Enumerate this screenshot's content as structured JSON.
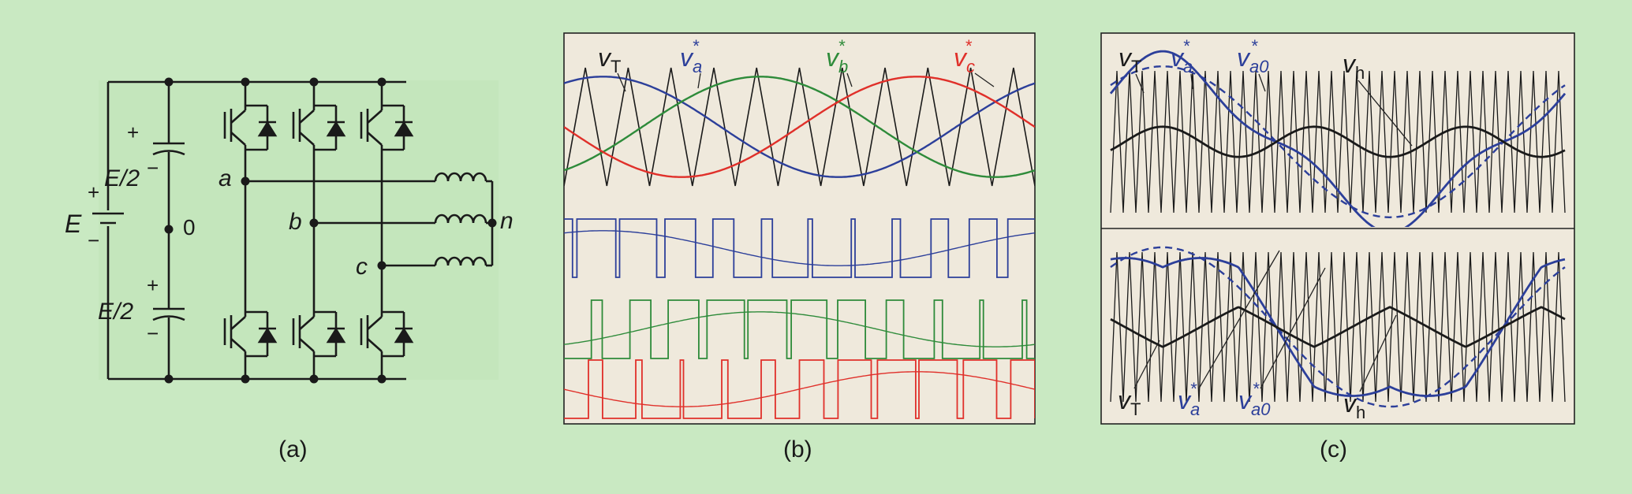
{
  "figure": {
    "background": "#c9e9c2",
    "panel_background": "#efe9dc",
    "colors": {
      "ink": "#1a1a1a",
      "phase_a": "#2c3f9a",
      "phase_b": "#2e8b3a",
      "phase_c": "#e0302a"
    }
  },
  "panel_a": {
    "caption": "(a)",
    "labels": {
      "plus": "+",
      "minus": "−",
      "E": "E",
      "E_half": "E/2",
      "zero": "0",
      "node_a": "a",
      "node_b": "b",
      "node_c": "c",
      "node_n": "n"
    }
  },
  "panel_b": {
    "caption": "(b)",
    "labels": {
      "v": "v",
      "sub_T": "T",
      "sub_a": "a",
      "sub_b": "b",
      "sub_c": "c",
      "star": "*"
    }
  },
  "panel_c": {
    "caption": "(c)",
    "labels": {
      "v": "v",
      "sub_T": "T",
      "sub_a": "a",
      "sub_a0": "a0",
      "sub_h": "h",
      "star": "*"
    }
  }
}
